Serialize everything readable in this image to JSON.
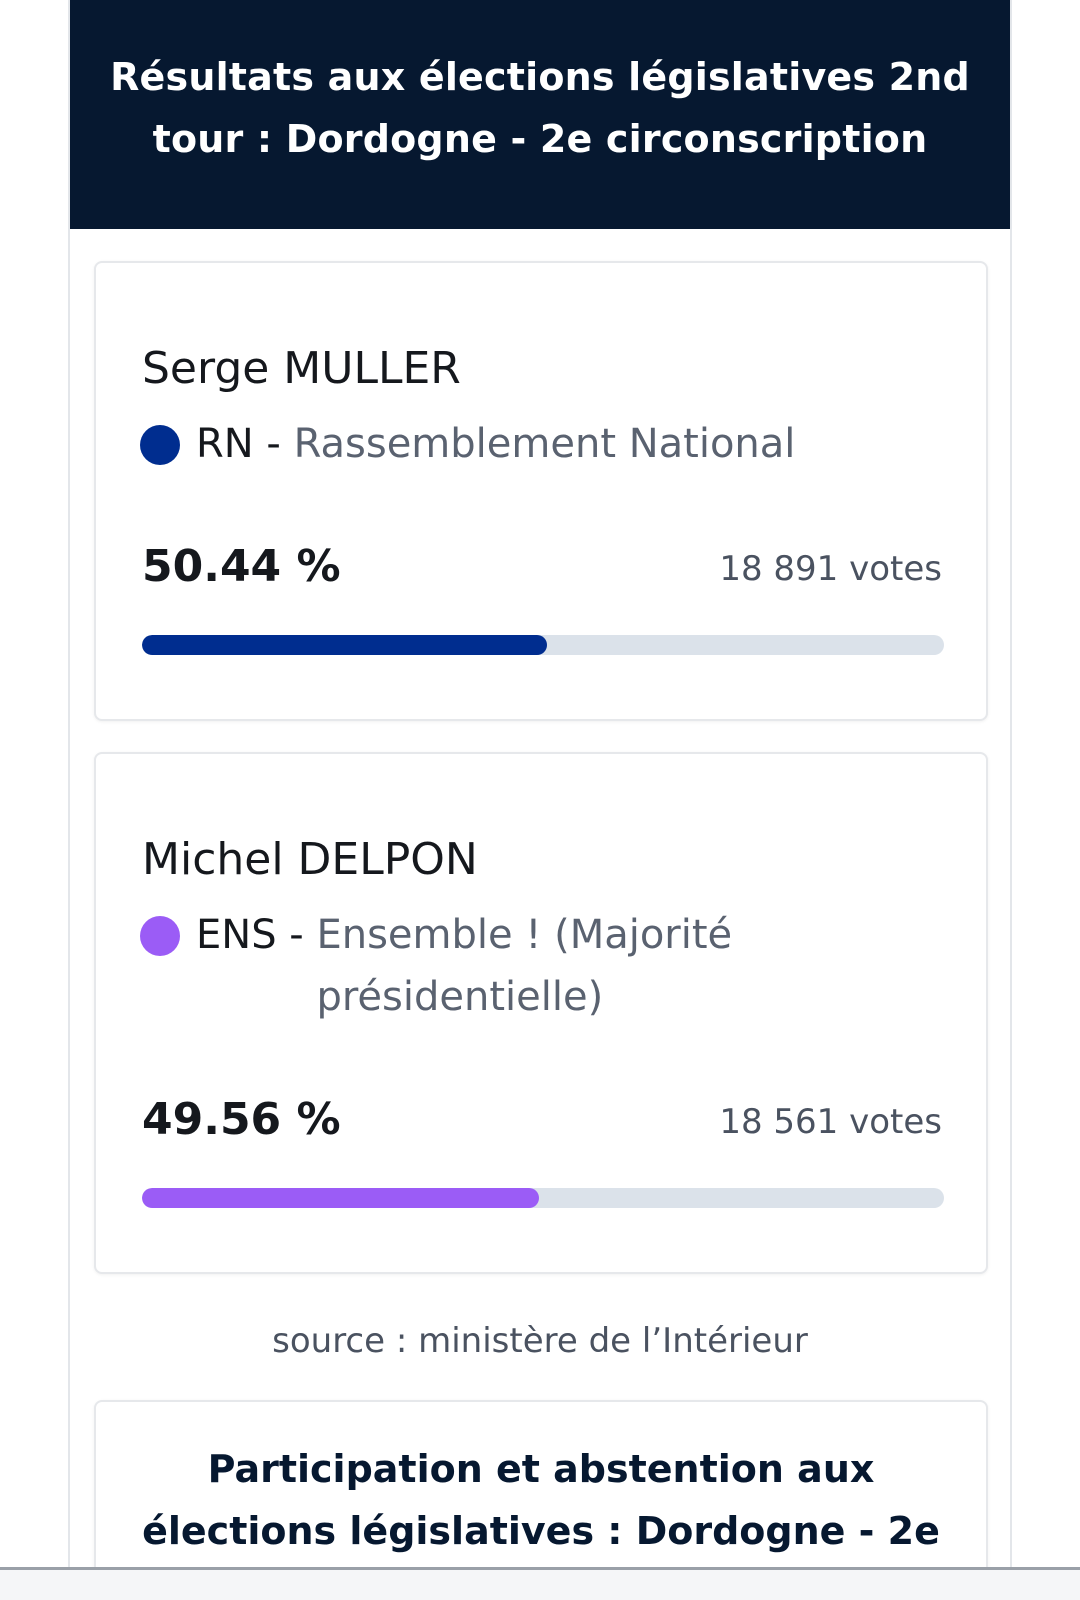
{
  "header": {
    "title": "Résultats aux élections législatives 2nd tour : Dordogne - 2e circonscription"
  },
  "candidates": [
    {
      "name": "Serge MULLER",
      "party_code": "RN",
      "separator": " - ",
      "party_name": "Rassemblement National",
      "party_color": "#002d8f",
      "percent_label": "50.44 %",
      "votes_label": "18 891 votes",
      "bar_fraction": 0.5044
    },
    {
      "name": "Michel DELPON",
      "party_code": "ENS",
      "separator": " - ",
      "party_name": "Ensemble ! (Majorité présidentielle)",
      "party_color": "#9b5cf6",
      "percent_label": "49.56 %",
      "votes_label": "18 561 votes",
      "bar_fraction": 0.4956
    }
  ],
  "source": "source : ministère de l’Intérieur",
  "participation": {
    "title": "Participation et abstention aux élections législatives : Dordogne - 2e"
  },
  "colors": {
    "header_bg": "#061830",
    "bar_track": "#dbe2ea"
  }
}
